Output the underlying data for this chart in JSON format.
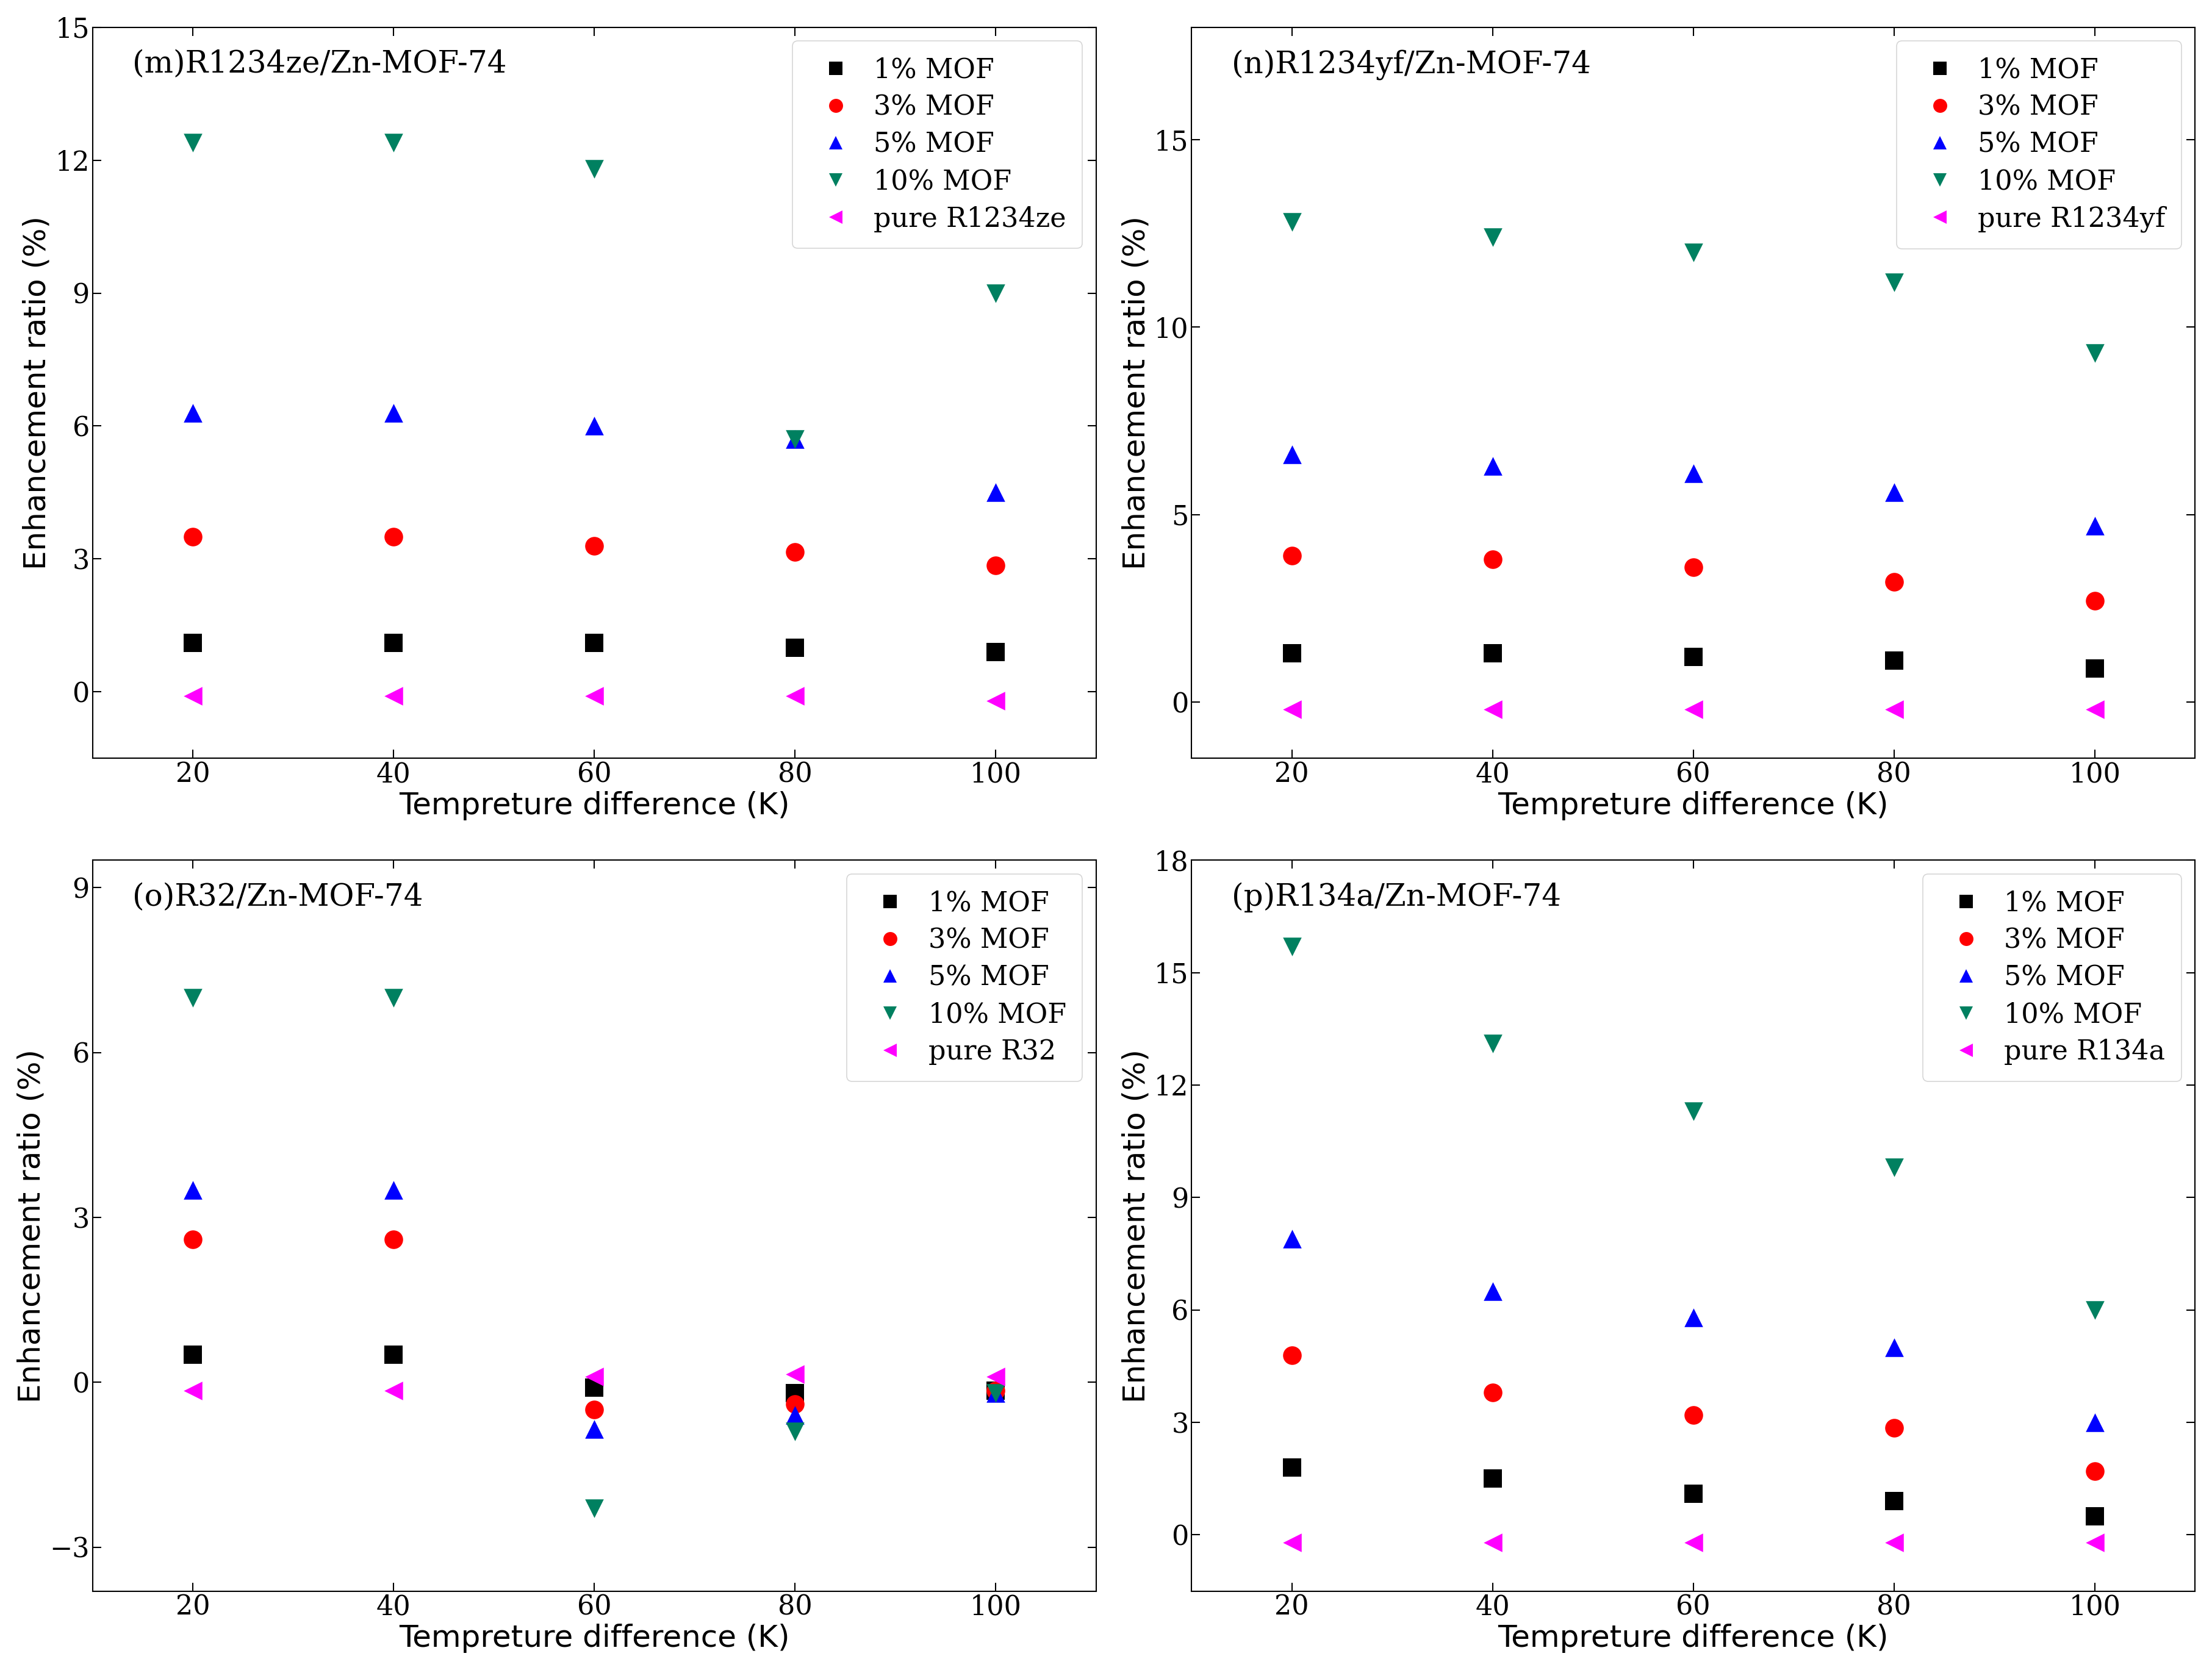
{
  "x": [
    20,
    40,
    60,
    80,
    100
  ],
  "panels": [
    {
      "label": "(m)R1234ze/Zn-MOF-74",
      "ylabel": "Enhancement ratio (%)",
      "xlabel": "Tempreture difference (K)",
      "pure_label": "pure R1234ze",
      "ylim": [
        -1.5,
        15
      ],
      "yticks": [
        0,
        3,
        6,
        9,
        12,
        15
      ],
      "series": {
        "1% MOF": [
          1.1,
          1.1,
          1.1,
          1.0,
          0.9
        ],
        "3% MOF": [
          3.5,
          3.5,
          3.3,
          3.15,
          2.85
        ],
        "5% MOF": [
          6.3,
          6.3,
          6.0,
          5.7,
          4.5
        ],
        "10% MOF": [
          12.4,
          12.4,
          11.8,
          5.7,
          9.0
        ],
        "pure": [
          -0.1,
          -0.1,
          -0.1,
          -0.1,
          -0.2
        ]
      }
    },
    {
      "label": "(n)R1234yf/Zn-MOF-74",
      "ylabel": "Enhancement ratio (%)",
      "xlabel": "Tempreture difference (K)",
      "pure_label": "pure R1234yf",
      "ylim": [
        -1.5,
        18
      ],
      "yticks": [
        0,
        5,
        10,
        15
      ],
      "series": {
        "1% MOF": [
          1.3,
          1.3,
          1.2,
          1.1,
          0.9
        ],
        "3% MOF": [
          3.9,
          3.8,
          3.6,
          3.2,
          2.7
        ],
        "5% MOF": [
          6.6,
          6.3,
          6.1,
          5.6,
          4.7
        ],
        "10% MOF": [
          12.8,
          12.4,
          12.0,
          11.2,
          9.3
        ],
        "pure": [
          -0.2,
          -0.2,
          -0.2,
          -0.2,
          -0.2
        ]
      }
    },
    {
      "label": "(o)R32/Zn-MOF-74",
      "ylabel": "Enhancement ratio (%)",
      "xlabel": "Tempreture difference (K)",
      "pure_label": "pure R32",
      "ylim": [
        -3.8,
        9.5
      ],
      "yticks": [
        -3,
        0,
        3,
        6,
        9
      ],
      "series": {
        "1% MOF": [
          0.5,
          0.5,
          -0.1,
          -0.2,
          -0.15
        ],
        "3% MOF": [
          2.6,
          2.6,
          -0.5,
          -0.4,
          -0.15
        ],
        "5% MOF": [
          3.5,
          3.5,
          -0.85,
          -0.6,
          -0.2
        ],
        "10% MOF": [
          7.0,
          7.0,
          -2.3,
          -0.9,
          -0.2
        ],
        "pure": [
          -0.15,
          -0.15,
          0.1,
          0.15,
          0.1
        ]
      }
    },
    {
      "label": "(p)R134a/Zn-MOF-74",
      "ylabel": "Enhancement ratio (%)",
      "xlabel": "Tempreture difference (K)",
      "pure_label": "pure R134a",
      "ylim": [
        -1.5,
        18
      ],
      "yticks": [
        0,
        3,
        6,
        9,
        12,
        15,
        18
      ],
      "series": {
        "1% MOF": [
          1.8,
          1.5,
          1.1,
          0.9,
          0.5
        ],
        "3% MOF": [
          4.8,
          3.8,
          3.2,
          2.85,
          1.7
        ],
        "5% MOF": [
          7.9,
          6.5,
          5.8,
          5.0,
          3.0
        ],
        "10% MOF": [
          15.7,
          13.1,
          11.3,
          9.8,
          6.0
        ],
        "pure": [
          -0.2,
          -0.2,
          -0.2,
          -0.2,
          -0.2
        ]
      }
    }
  ],
  "series_colors": {
    "1% MOF": "#000000",
    "3% MOF": "#ff0000",
    "5% MOF": "#0000ff",
    "10% MOF": "#008060",
    "pure": "#ff00ff"
  },
  "series_markers": {
    "1% MOF": "s",
    "3% MOF": "o",
    "5% MOF": "^",
    "10% MOF": "v",
    "pure": "<"
  },
  "markersize": 22,
  "fontsize_label": 36,
  "fontsize_title": 36,
  "fontsize_tick": 32,
  "fontsize_legend": 32
}
